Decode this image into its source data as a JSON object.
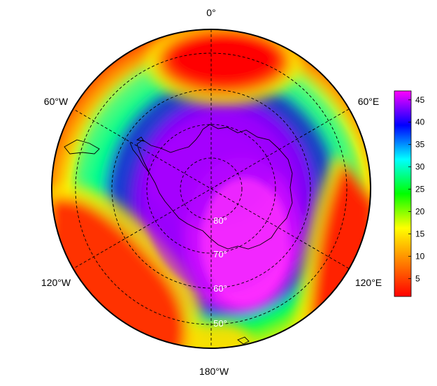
{
  "longitude_labels": [
    "0°",
    "60°E",
    "120°E",
    "180°W",
    "120°W",
    "60°W"
  ],
  "latitude_labels": [
    "80°",
    "70°",
    "60°",
    "50°"
  ],
  "colorbar": {
    "ticks": [
      5,
      10,
      15,
      20,
      25,
      30,
      35,
      40,
      45
    ],
    "range": [
      1,
      47
    ],
    "colors": [
      "#ff0000",
      "#ff7f00",
      "#ffff00",
      "#00ff00",
      "#00ffff",
      "#0000ff",
      "#ff00ff"
    ]
  },
  "colors": {
    "coastline": "#000000",
    "grid": "#000000",
    "frame": "#000000"
  }
}
